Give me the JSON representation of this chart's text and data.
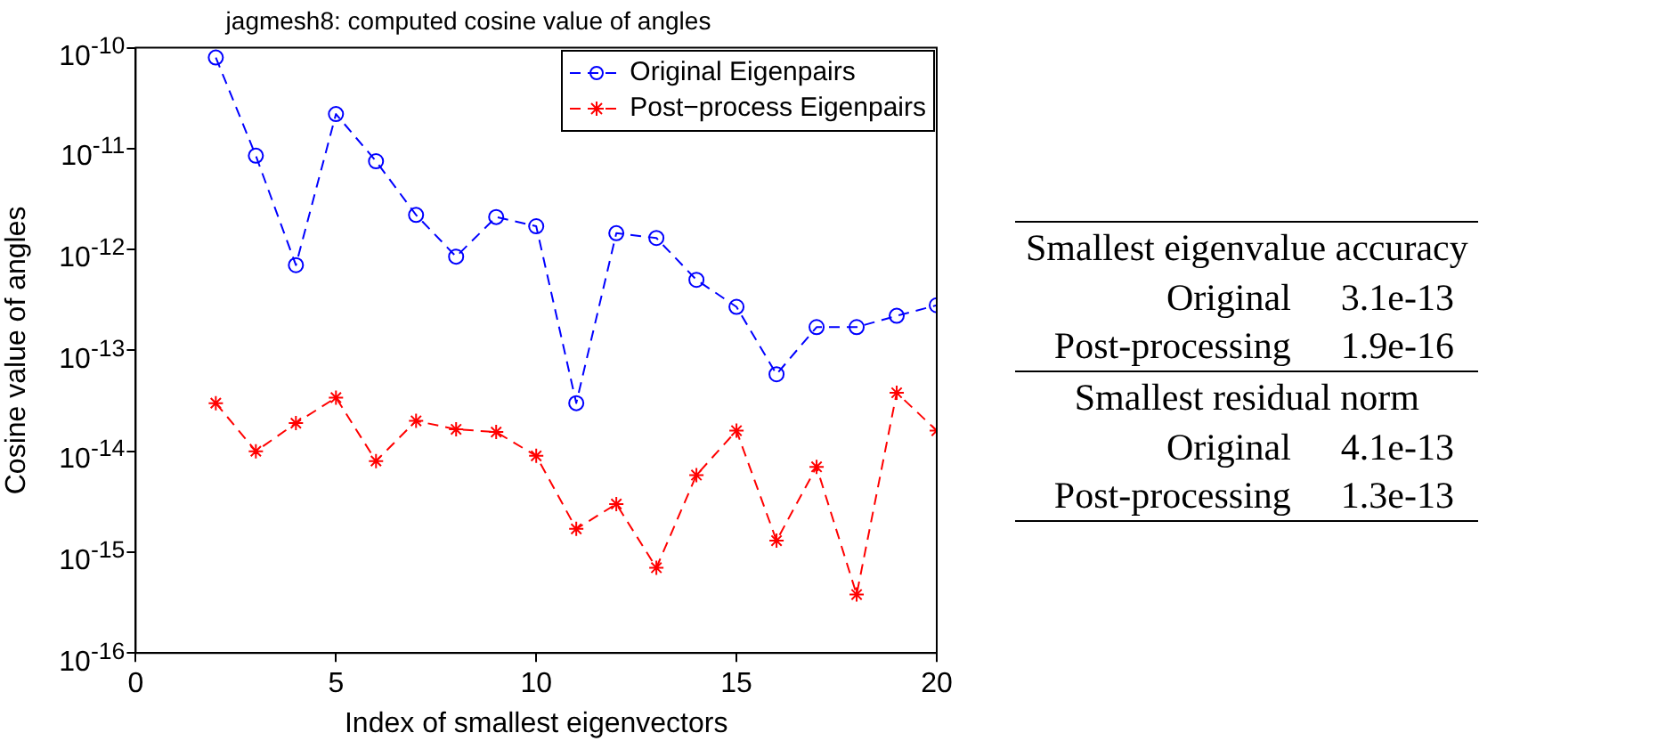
{
  "chart_data": [
    {
      "type": "line",
      "title": "jagmesh8: computed cosine value of angles",
      "xlabel": "Index of smallest eigenvectors",
      "ylabel": "Cosine value of angles",
      "log": "y",
      "grid": false,
      "legend": "top right",
      "line_style": "dashed",
      "x": [
        2,
        3,
        4,
        5,
        6,
        7,
        8,
        9,
        10,
        11,
        12,
        13,
        14,
        15,
        16,
        17,
        18,
        19,
        20
      ],
      "xlim": [
        0,
        20
      ],
      "xticks": [
        0,
        5,
        10,
        15,
        20
      ],
      "ylim": [
        1e-16,
        1e-10
      ],
      "yticks": [
        {
          "value": 1e-16,
          "label": "10$^{-16}$"
        },
        {
          "value": 1e-15,
          "label": "10$^{-15}$"
        },
        {
          "value": 1e-14,
          "label": "10$^{-14}$"
        },
        {
          "value": 1e-13,
          "label": "10$^{-13}$"
        },
        {
          "value": 1e-12,
          "label": "10$^{-12}$"
        },
        {
          "value": 1e-11,
          "label": "10$^{-11}$"
        },
        {
          "value": 1e-10,
          "label": "10$^{-10}$"
        }
      ],
      "series": [
        {
          "name": "Original Eigenpairs",
          "color": "#0000ff",
          "marker": "circle",
          "values": [
            8e-11,
            8.5e-12,
            7e-13,
            2.2e-11,
            7.5e-12,
            2.2e-12,
            8.5e-13,
            2.1e-12,
            1.7e-12,
            3e-14,
            1.45e-12,
            1.3e-12,
            5e-13,
            2.7e-13,
            5.8e-14,
            1.7e-13,
            1.7e-13,
            2.2e-13,
            2.8e-13
          ]
        },
        {
          "name": "Post−process Eigenpairs",
          "color": "#ff0000",
          "marker": "cross",
          "values": [
            3e-14,
            1e-14,
            1.9e-14,
            3.4e-14,
            8e-15,
            2e-14,
            1.65e-14,
            1.55e-14,
            9e-15,
            1.7e-15,
            3e-15,
            7e-16,
            5.8e-15,
            1.6e-14,
            1.3e-15,
            7e-15,
            3.8e-16,
            3.8e-14,
            1.6e-14
          ]
        }
      ]
    },
    {
      "type": "other",
      "annotations": [
        "Smallest eigenvalue accuracy",
        "Original",
        "3.1e-13",
        "Post-processing",
        "1.9e-16",
        "Smallest residual norm",
        "Original",
        "4.1e-13",
        "Post-processing",
        "1.3e-13"
      ]
    }
  ]
}
